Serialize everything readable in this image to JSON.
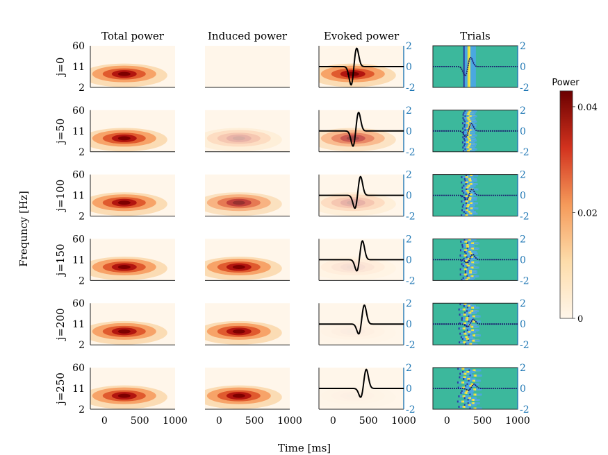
{
  "chart_data": {
    "type": "heatmap",
    "column_titles": [
      "Total power",
      "Induced power",
      "Evoked power",
      "Trials"
    ],
    "row_labels": [
      "j=0",
      "j=50",
      "j=100",
      "j=150",
      "j=200",
      "j=250"
    ],
    "ylabel": "Frequncy [Hz]",
    "xlabel": "Time [ms]",
    "x_ticks": [
      "0",
      "500",
      "1000"
    ],
    "y_ticks": [
      "60",
      "11",
      "2"
    ],
    "right_ticks": [
      "2",
      "0",
      "-2"
    ],
    "colorbar": {
      "title": "Power",
      "ticks": [
        "0.04",
        "0.02",
        "0"
      ],
      "range": [
        0,
        0.043
      ]
    },
    "x_range": [
      -200,
      1000
    ],
    "y_range_hz": [
      2,
      60
    ],
    "right_range": [
      -2,
      2
    ],
    "power_peak": {
      "time_ms": 280,
      "freq_hz": 6
    },
    "total_power_peak": [
      0.04,
      0.04,
      0.04,
      0.04,
      0.04,
      0.04
    ],
    "induced_power_peak": [
      0.0,
      0.012,
      0.032,
      0.04,
      0.04,
      0.04
    ],
    "evoked_power_peak": [
      0.04,
      0.028,
      0.012,
      0.004,
      0.0015,
      0.0008
    ],
    "evoked_wave_jitter_ms": [
      0,
      50,
      100,
      150,
      200,
      250
    ],
    "accent_colors": {
      "right_axis": "#1f77b4",
      "trial_background": "#3cb89c",
      "wave": "#000000"
    }
  }
}
